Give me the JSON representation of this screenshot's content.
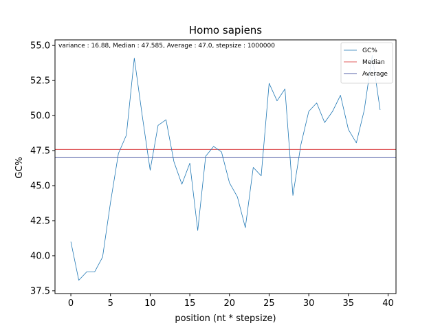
{
  "chart_data": {
    "type": "line",
    "title": "Homo sapiens",
    "xlabel": "position (nt * stepsize)",
    "ylabel": "GC%",
    "annotation": "variance : 16.88, Median : 47.585, Average : 47.0, stepsize : 1000000",
    "xlim": [
      -2,
      41
    ],
    "ylim": [
      37.3,
      55.4
    ],
    "xticks": [
      0,
      5,
      10,
      15,
      20,
      25,
      30,
      35,
      40
    ],
    "yticks": [
      37.5,
      40.0,
      42.5,
      45.0,
      47.5,
      50.0,
      52.5,
      55.0
    ],
    "grid": false,
    "legend_placement": "top-right",
    "series": [
      {
        "name": "GC%",
        "color": "#1f77b4",
        "x": [
          0,
          1,
          2,
          3,
          4,
          5,
          6,
          7,
          8,
          9,
          10,
          11,
          12,
          13,
          14,
          15,
          16,
          17,
          18,
          19,
          20,
          21,
          22,
          23,
          24,
          25,
          26,
          27,
          28,
          29,
          30,
          31,
          32,
          33,
          34,
          35,
          36,
          37,
          38,
          39
        ],
        "y": [
          41.0,
          38.25,
          38.85,
          38.85,
          39.9,
          43.8,
          47.3,
          48.6,
          54.1,
          50.0,
          46.1,
          49.3,
          49.7,
          46.7,
          45.1,
          46.6,
          41.8,
          47.1,
          47.8,
          47.4,
          45.2,
          44.2,
          42.0,
          46.3,
          45.7,
          52.3,
          51.05,
          51.9,
          44.3,
          47.9,
          50.3,
          50.9,
          49.5,
          50.3,
          51.45,
          49.0,
          48.05,
          50.4,
          54.3,
          50.4
        ]
      }
    ],
    "hlines": [
      {
        "name": "Median",
        "value": 47.585,
        "color": "#d62728"
      },
      {
        "name": "Average",
        "value": 47.0,
        "color": "#1f2f8c"
      }
    ]
  }
}
